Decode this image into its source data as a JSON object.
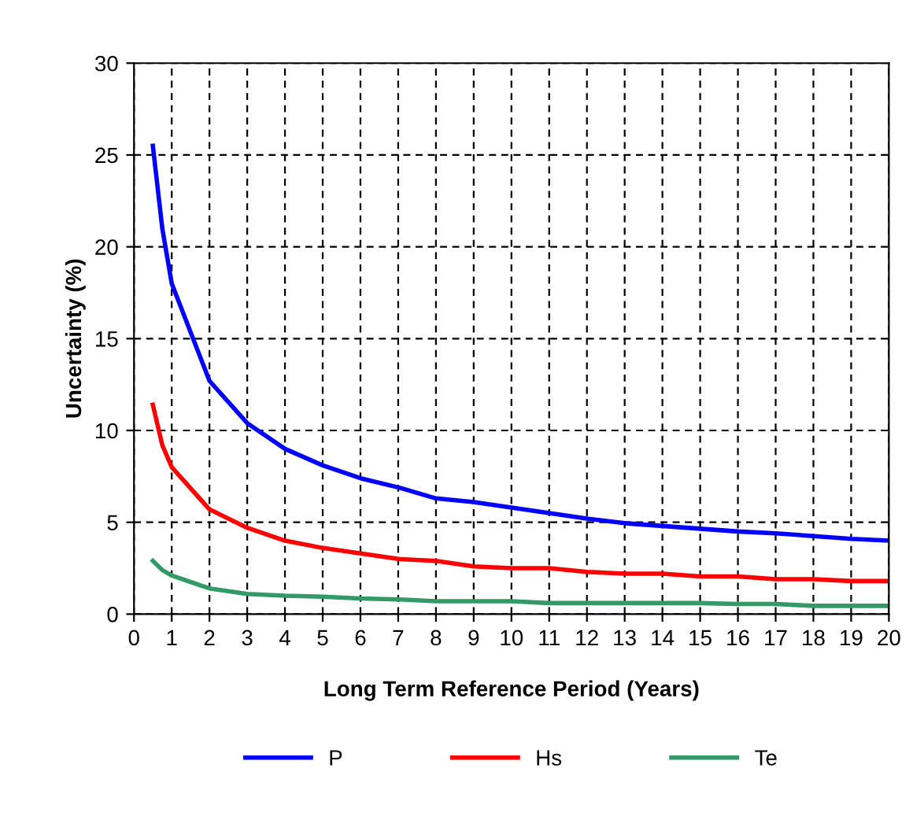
{
  "chart_data": {
    "type": "line",
    "xlabel": "Long Term Reference Period (Years)",
    "ylabel": "Uncertainty (%)",
    "x": [
      0.5,
      0.75,
      1,
      2,
      3,
      4,
      5,
      6,
      7,
      8,
      9,
      10,
      11,
      12,
      13,
      14,
      15,
      16,
      17,
      18,
      19,
      20
    ],
    "series": [
      {
        "name": "P",
        "color": "#0000ff",
        "values": [
          25.5,
          21,
          18,
          12.7,
          10.4,
          9.0,
          8.1,
          7.4,
          6.9,
          6.3,
          6.1,
          5.8,
          5.5,
          5.2,
          4.95,
          4.8,
          4.65,
          4.5,
          4.4,
          4.25,
          4.1,
          4.0
        ]
      },
      {
        "name": "Hs",
        "color": "#ff0000",
        "values": [
          11.4,
          9.2,
          8.0,
          5.7,
          4.7,
          4.0,
          3.6,
          3.3,
          3.0,
          2.9,
          2.6,
          2.5,
          2.5,
          2.3,
          2.2,
          2.2,
          2.05,
          2.05,
          1.9,
          1.9,
          1.8,
          1.8
        ]
      },
      {
        "name": "Te",
        "color": "#339966",
        "values": [
          2.9,
          2.4,
          2.1,
          1.4,
          1.1,
          1.0,
          0.95,
          0.85,
          0.8,
          0.7,
          0.7,
          0.7,
          0.6,
          0.6,
          0.6,
          0.6,
          0.6,
          0.55,
          0.55,
          0.45,
          0.45,
          0.45
        ]
      }
    ],
    "xlim": [
      0,
      20
    ],
    "xticks": [
      0,
      1,
      2,
      3,
      4,
      5,
      6,
      7,
      8,
      9,
      10,
      11,
      12,
      13,
      14,
      15,
      16,
      17,
      18,
      19,
      20
    ],
    "ylim": [
      0,
      30
    ],
    "yticks": [
      0,
      5,
      10,
      15,
      20,
      25,
      30
    ],
    "grid": true,
    "legend": "bottom",
    "marker": "none",
    "line_style": "solid"
  }
}
